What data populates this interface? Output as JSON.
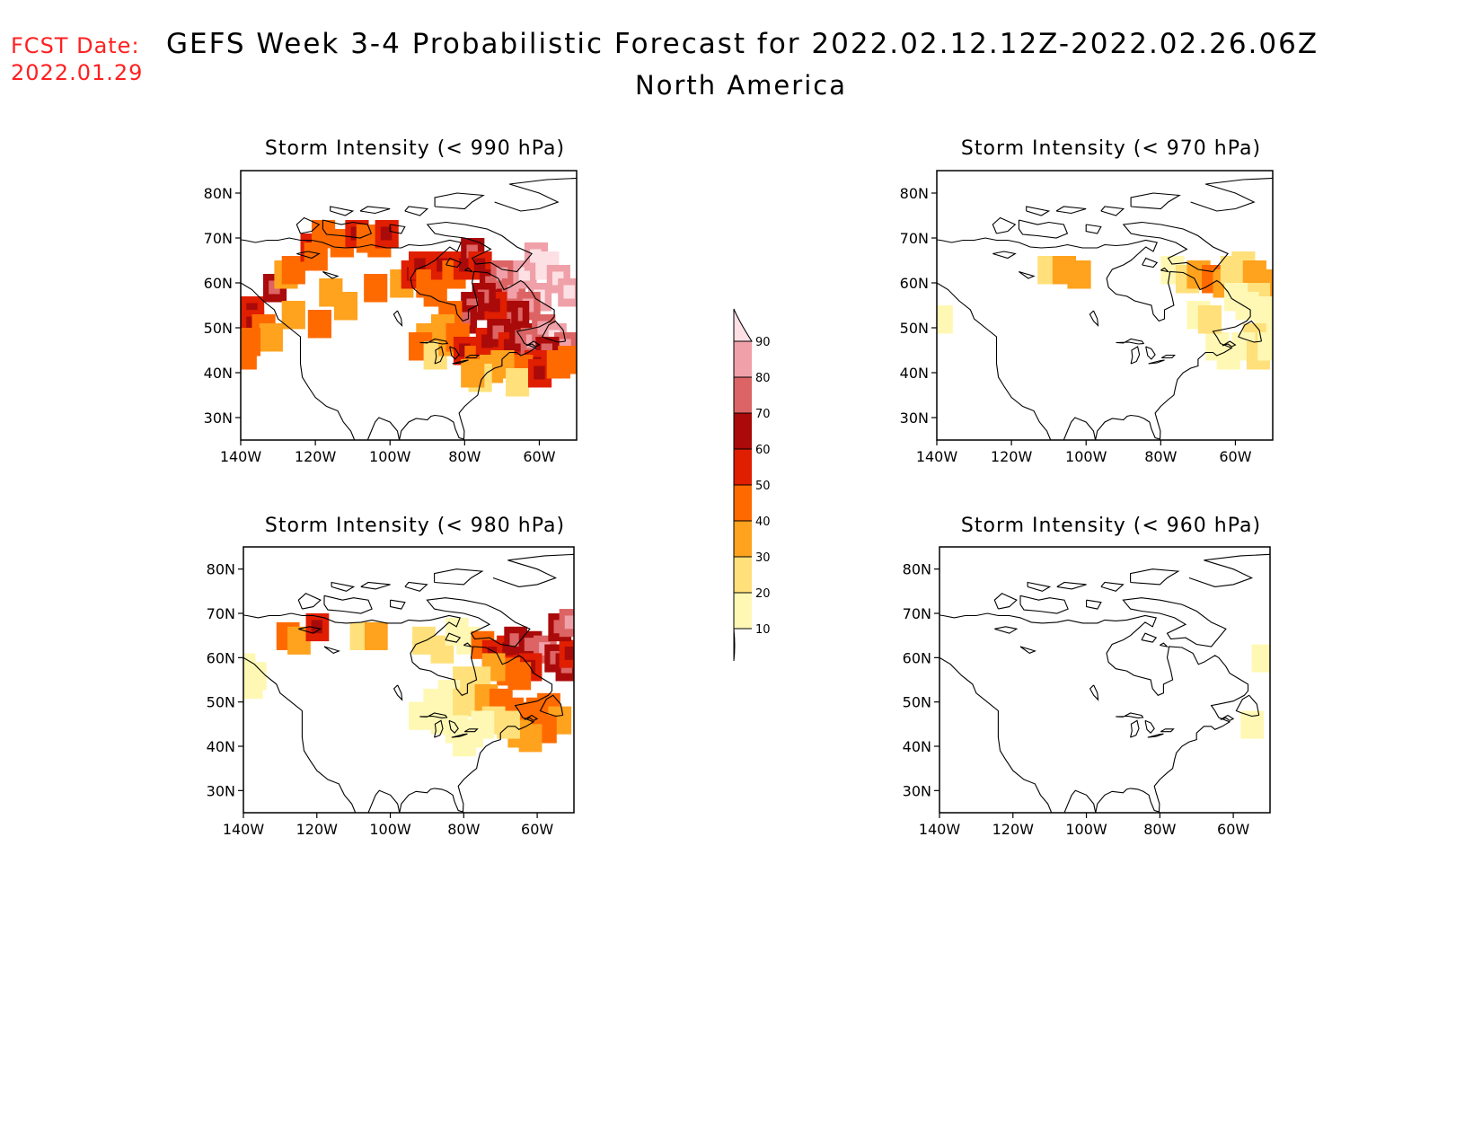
{
  "header": {
    "fcst_label": "FCST Date:",
    "fcst_date": "2022.01.29",
    "title": "GEFS Week 3-4 Probabilistic Forecast for 2022.02.12.12Z-2022.02.26.06Z",
    "subtitle": "North America"
  },
  "panels": [
    {
      "id": "p990",
      "title": "Storm Intensity (< 990 hPa)",
      "level": "high"
    },
    {
      "id": "p970",
      "title": "Storm Intensity (< 970 hPa)",
      "level": "low"
    },
    {
      "id": "p980",
      "title": "Storm Intensity (< 980 hPa)",
      "level": "mid"
    },
    {
      "id": "p960",
      "title": "Storm Intensity (< 960 hPa)",
      "level": "none"
    }
  ],
  "axes": {
    "lat_labels": [
      "80N",
      "70N",
      "60N",
      "50N",
      "40N",
      "30N"
    ],
    "lon_labels": [
      "140W",
      "120W",
      "100W",
      "80W",
      "60W"
    ]
  },
  "colorbar": {
    "labels": [
      "90",
      "80",
      "70",
      "60",
      "50",
      "40",
      "30",
      "20",
      "10"
    ],
    "colors": [
      "#fde0e4",
      "#f0a0a8",
      "#dc6464",
      "#aa0a0a",
      "#e01e00",
      "#ff6a00",
      "#ffa21e",
      "#ffe07a",
      "#fff8b4"
    ]
  }
}
